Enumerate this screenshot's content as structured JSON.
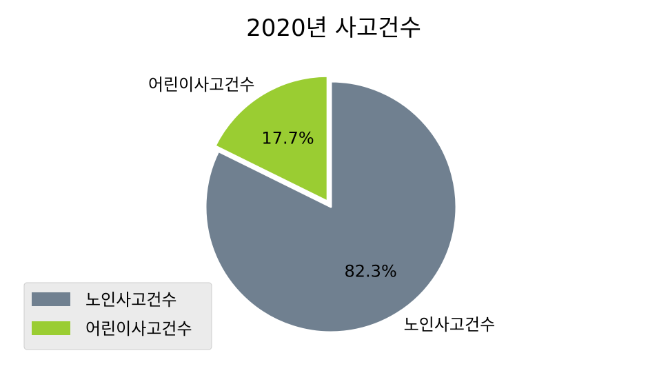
{
  "chart_data": {
    "type": "pie",
    "title": "2020년 사고건수",
    "slices": [
      {
        "label": "노인사고건수",
        "value": 82.3,
        "pct_label": "82.3%",
        "color": "#708090",
        "explode": 0
      },
      {
        "label": "어린이사고건수",
        "value": 17.7,
        "pct_label": "17.7%",
        "color": "#9acd32",
        "explode": 0.05
      }
    ],
    "start_angle_deg": 90,
    "direction": "clockwise",
    "wedge_edge_color": "#ffffff",
    "legend": {
      "placement": "lower-left",
      "entries": [
        "노인사고건수",
        "어린이사고건수"
      ]
    }
  }
}
